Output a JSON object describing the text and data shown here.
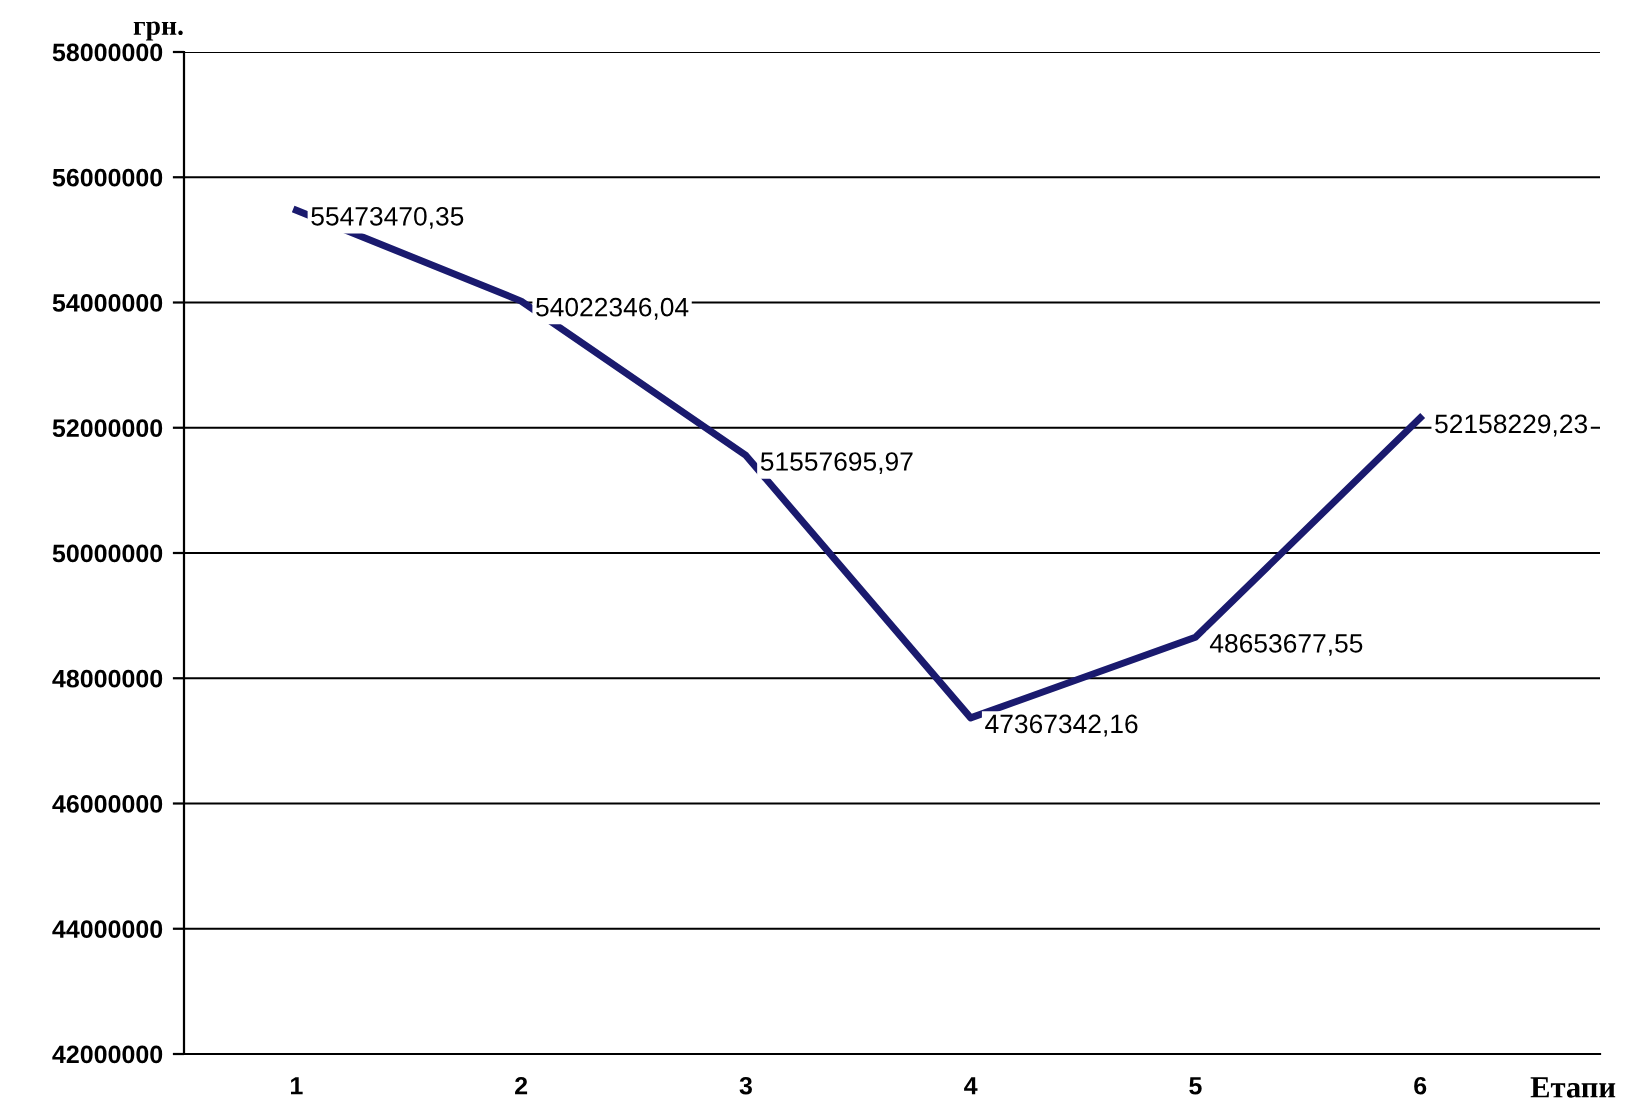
{
  "chart_data": {
    "type": "line",
    "ylabel": "грн.",
    "xlabel": "Етапи",
    "categories": [
      "1",
      "2",
      "3",
      "4",
      "5",
      "6"
    ],
    "series": [
      {
        "color": "#1a1a6e",
        "values": [
          55473470.35,
          54022346.04,
          51557695.97,
          47367342.16,
          48653677.55,
          52158229.23
        ],
        "value_labels": [
          "55473470,35",
          "54022346,04",
          "51557695,97",
          "47367342,16",
          "48653677,55",
          "52158229,23"
        ]
      }
    ],
    "ylim": [
      42000000,
      58000000
    ],
    "yticks": [
      42000000,
      44000000,
      46000000,
      48000000,
      50000000,
      52000000,
      54000000,
      56000000,
      58000000
    ],
    "grid": "y",
    "legend": false,
    "marker": "none",
    "line_style": "solid"
  }
}
